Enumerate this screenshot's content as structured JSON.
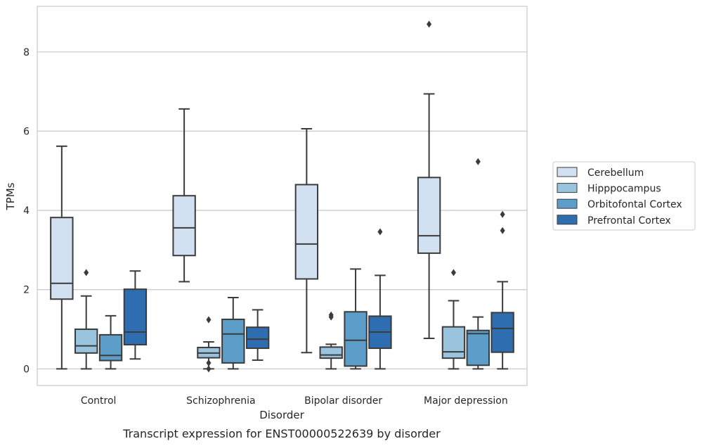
{
  "chart_data": {
    "type": "box",
    "caption": "Transcript expression for ENST00000522639 by disorder",
    "xlabel": "Disorder",
    "ylabel": "TPMs",
    "ylim": [
      -0.42,
      9.15
    ],
    "yticks": [
      0,
      2,
      4,
      6,
      8
    ],
    "grid": "horizontal",
    "legend_position": "right",
    "categories": [
      "Control",
      "Schizophrenia",
      "Bipolar disorder",
      "Major depression"
    ],
    "series": [
      {
        "name": "Cerebellum",
        "color": "#d1e1f2",
        "boxes": [
          {
            "whisker_low": 0.0,
            "q1": 1.76,
            "median": 2.16,
            "q3": 3.82,
            "whisker_high": 5.62,
            "outliers": []
          },
          {
            "whisker_low": 2.2,
            "q1": 2.86,
            "median": 3.56,
            "q3": 4.37,
            "whisker_high": 6.56,
            "outliers": []
          },
          {
            "whisker_low": 0.41,
            "q1": 2.27,
            "median": 3.15,
            "q3": 4.65,
            "whisker_high": 6.06,
            "outliers": []
          },
          {
            "whisker_low": 0.77,
            "q1": 2.92,
            "median": 3.36,
            "q3": 4.83,
            "whisker_high": 6.94,
            "outliers": [
              8.7
            ]
          }
        ]
      },
      {
        "name": "Hipppocampus",
        "color": "#9ac3de",
        "boxes": [
          {
            "whisker_low": 0.0,
            "q1": 0.4,
            "median": 0.58,
            "q3": 1.0,
            "whisker_high": 1.84,
            "outliers": [
              2.43
            ]
          },
          {
            "whisker_low": 0.0,
            "q1": 0.28,
            "median": 0.4,
            "q3": 0.54,
            "whisker_high": 0.68,
            "outliers": [
              1.24,
              0.15,
              0.0
            ]
          },
          {
            "whisker_low": 0.0,
            "q1": 0.27,
            "median": 0.35,
            "q3": 0.55,
            "whisker_high": 0.62,
            "outliers": [
              1.36,
              1.31
            ]
          },
          {
            "whisker_low": 0.0,
            "q1": 0.27,
            "median": 0.43,
            "q3": 1.06,
            "whisker_high": 1.72,
            "outliers": [
              2.43
            ]
          }
        ]
      },
      {
        "name": "Orbitofontal Cortex",
        "color": "#5c9dc9",
        "boxes": [
          {
            "whisker_low": 0.0,
            "q1": 0.21,
            "median": 0.34,
            "q3": 0.86,
            "whisker_high": 1.34,
            "outliers": []
          },
          {
            "whisker_low": 0.0,
            "q1": 0.15,
            "median": 0.88,
            "q3": 1.25,
            "whisker_high": 1.8,
            "outliers": []
          },
          {
            "whisker_low": 0.0,
            "q1": 0.07,
            "median": 0.72,
            "q3": 1.44,
            "whisker_high": 2.52,
            "outliers": []
          },
          {
            "whisker_low": 0.0,
            "q1": 0.09,
            "median": 0.89,
            "q3": 0.97,
            "whisker_high": 1.31,
            "outliers": [
              5.23
            ]
          }
        ]
      },
      {
        "name": "Prefrontal Cortex",
        "color": "#2d6db0",
        "boxes": [
          {
            "whisker_low": 0.25,
            "q1": 0.61,
            "median": 0.93,
            "q3": 2.01,
            "whisker_high": 2.47,
            "outliers": []
          },
          {
            "whisker_low": 0.22,
            "q1": 0.52,
            "median": 0.75,
            "q3": 1.05,
            "whisker_high": 1.49,
            "outliers": []
          },
          {
            "whisker_low": 0.0,
            "q1": 0.52,
            "median": 0.93,
            "q3": 1.33,
            "whisker_high": 2.36,
            "outliers": [
              3.46
            ]
          },
          {
            "whisker_low": 0.0,
            "q1": 0.42,
            "median": 1.02,
            "q3": 1.42,
            "whisker_high": 2.2,
            "outliers": [
              3.9,
              3.49
            ]
          }
        ]
      }
    ]
  }
}
